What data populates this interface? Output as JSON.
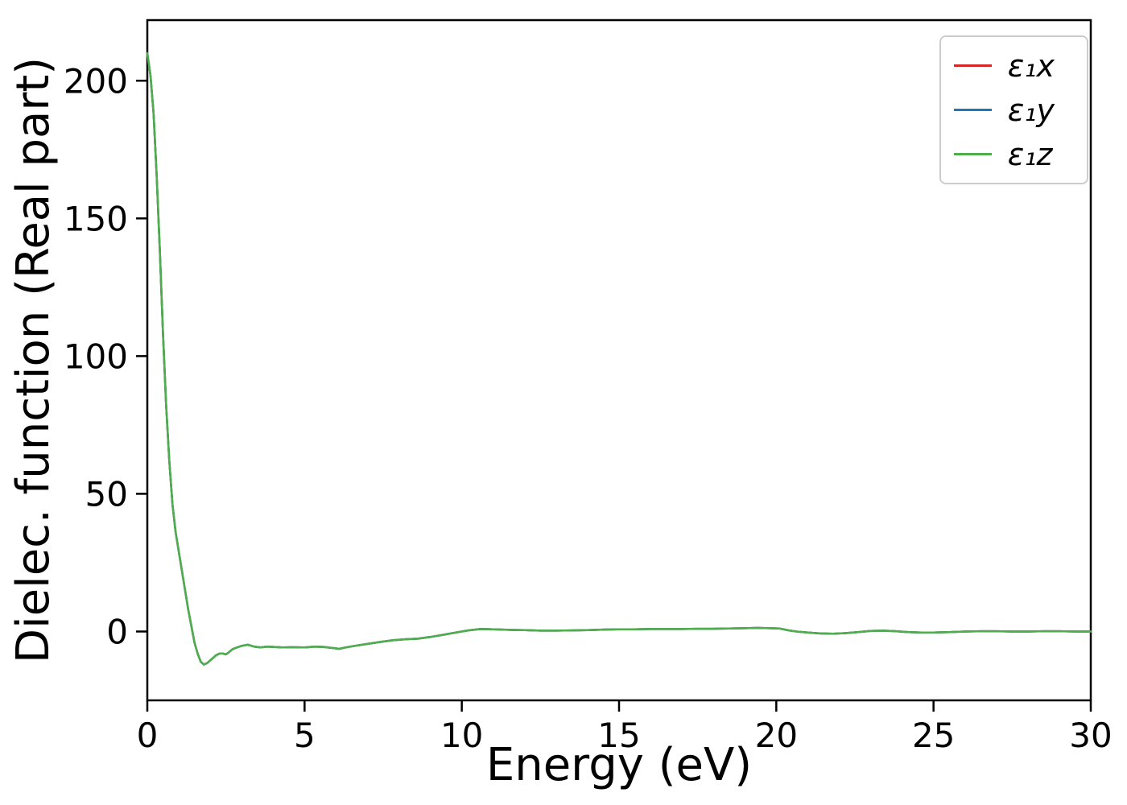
{
  "chart_data": {
    "type": "line",
    "title": "",
    "xlabel": "Energy (eV)",
    "ylabel": "Dielec. function (Real part)",
    "xlim": [
      0,
      30
    ],
    "ylim": [
      -25,
      222
    ],
    "xticks": [
      0,
      5,
      10,
      15,
      20,
      25,
      30
    ],
    "yticks": [
      0,
      50,
      100,
      150,
      200
    ],
    "grid": false,
    "legend_position": "upper right",
    "note": "All three series overlap exactly; the green series is drawn last and is the visible curve.",
    "spine_color": "#000000",
    "x": [
      0,
      0.1,
      0.2,
      0.3,
      0.4,
      0.5,
      0.6,
      0.7,
      0.8,
      0.9,
      1,
      1.1,
      1.2,
      1.3,
      1.4,
      1.5,
      1.6,
      1.7,
      1.8,
      1.9,
      2,
      2.1,
      2.2,
      2.3,
      2.4,
      2.5,
      2.6,
      2.7,
      2.8,
      3,
      3.2,
      3.4,
      3.6,
      3.8,
      4,
      4.3,
      4.6,
      5,
      5.3,
      5.6,
      5.9,
      6.1,
      6.3,
      6.6,
      7,
      7.4,
      7.8,
      8.2,
      8.6,
      9,
      9.4,
      9.8,
      10.2,
      10.6,
      11,
      11.5,
      12,
      12.5,
      13,
      13.5,
      14,
      14.5,
      15,
      15.5,
      16,
      16.5,
      17,
      17.5,
      18,
      18.5,
      19,
      19.4,
      19.8,
      20.1,
      20.4,
      20.7,
      21,
      21.4,
      21.8,
      22.2,
      22.6,
      23,
      23.4,
      23.8,
      24.2,
      24.6,
      25,
      25.5,
      26,
      26.5,
      27,
      27.5,
      28,
      28.5,
      29,
      29.5,
      30
    ],
    "series": [
      {
        "id": "e1x",
        "label": "ε₁x",
        "color": "#d62728",
        "values": [
          210,
          202,
          188,
          165,
          138,
          108,
          82,
          62,
          46,
          36,
          29,
          22,
          15,
          8,
          2,
          -4,
          -8,
          -11,
          -12,
          -11.5,
          -10.5,
          -9.5,
          -8.5,
          -8,
          -8,
          -8.3,
          -7.5,
          -6.5,
          -6,
          -5.2,
          -4.8,
          -5.5,
          -5.8,
          -5.5,
          -5.6,
          -5.8,
          -5.7,
          -5.8,
          -5.5,
          -5.6,
          -6,
          -6.3,
          -5.8,
          -5.2,
          -4.5,
          -3.8,
          -3.2,
          -2.8,
          -2.6,
          -2,
          -1.2,
          -0.4,
          0.4,
          0.9,
          0.8,
          0.6,
          0.5,
          0.3,
          0.3,
          0.4,
          0.5,
          0.7,
          0.8,
          0.8,
          0.9,
          0.9,
          0.9,
          1,
          1,
          1.1,
          1.2,
          1.3,
          1.2,
          1.1,
          0.4,
          -0.1,
          -0.4,
          -0.7,
          -0.8,
          -0.6,
          -0.2,
          0.2,
          0.3,
          0.1,
          -0.2,
          -0.4,
          -0.4,
          -0.2,
          0,
          0.1,
          0.1,
          0,
          0,
          0.1,
          0.1,
          0,
          0
        ]
      },
      {
        "id": "e1y",
        "label": "ε₁y",
        "color": "#1f77b4",
        "values": [
          210,
          202,
          188,
          165,
          138,
          108,
          82,
          62,
          46,
          36,
          29,
          22,
          15,
          8,
          2,
          -4,
          -8,
          -11,
          -12,
          -11.5,
          -10.5,
          -9.5,
          -8.5,
          -8,
          -8,
          -8.3,
          -7.5,
          -6.5,
          -6,
          -5.2,
          -4.8,
          -5.5,
          -5.8,
          -5.5,
          -5.6,
          -5.8,
          -5.7,
          -5.8,
          -5.5,
          -5.6,
          -6,
          -6.3,
          -5.8,
          -5.2,
          -4.5,
          -3.8,
          -3.2,
          -2.8,
          -2.6,
          -2,
          -1.2,
          -0.4,
          0.4,
          0.9,
          0.8,
          0.6,
          0.5,
          0.3,
          0.3,
          0.4,
          0.5,
          0.7,
          0.8,
          0.8,
          0.9,
          0.9,
          0.9,
          1,
          1,
          1.1,
          1.2,
          1.3,
          1.2,
          1.1,
          0.4,
          -0.1,
          -0.4,
          -0.7,
          -0.8,
          -0.6,
          -0.2,
          0.2,
          0.3,
          0.1,
          -0.2,
          -0.4,
          -0.4,
          -0.2,
          0,
          0.1,
          0.1,
          0,
          0,
          0.1,
          0.1,
          0,
          0
        ]
      },
      {
        "id": "e1z",
        "label": "ε₁z",
        "color": "#4daf4a",
        "values": [
          210,
          202,
          188,
          165,
          138,
          108,
          82,
          62,
          46,
          36,
          29,
          22,
          15,
          8,
          2,
          -4,
          -8,
          -11,
          -12,
          -11.5,
          -10.5,
          -9.5,
          -8.5,
          -8,
          -8,
          -8.3,
          -7.5,
          -6.5,
          -6,
          -5.2,
          -4.8,
          -5.5,
          -5.8,
          -5.5,
          -5.6,
          -5.8,
          -5.7,
          -5.8,
          -5.5,
          -5.6,
          -6,
          -6.3,
          -5.8,
          -5.2,
          -4.5,
          -3.8,
          -3.2,
          -2.8,
          -2.6,
          -2,
          -1.2,
          -0.4,
          0.4,
          0.9,
          0.8,
          0.6,
          0.5,
          0.3,
          0.3,
          0.4,
          0.5,
          0.7,
          0.8,
          0.8,
          0.9,
          0.9,
          0.9,
          1,
          1,
          1.1,
          1.2,
          1.3,
          1.2,
          1.1,
          0.4,
          -0.1,
          -0.4,
          -0.7,
          -0.8,
          -0.6,
          -0.2,
          0.2,
          0.3,
          0.1,
          -0.2,
          -0.4,
          -0.4,
          -0.2,
          0,
          0.1,
          0.1,
          0,
          0,
          0.1,
          0.1,
          0,
          0
        ]
      }
    ]
  }
}
